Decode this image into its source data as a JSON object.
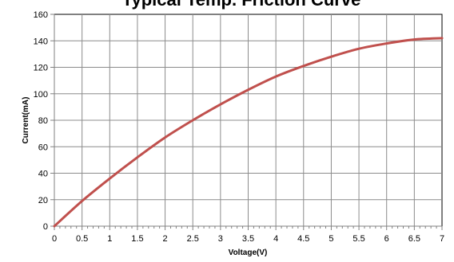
{
  "chart_data": {
    "type": "line",
    "title": "Typical Temp. Friction Curve",
    "xlabel": "Voltage(V)",
    "ylabel": "Current(mA)",
    "xlim": [
      0,
      7
    ],
    "ylim": [
      0,
      160
    ],
    "x_ticks": [
      "0",
      "0.5",
      "1",
      "1.5",
      "2",
      "2.5",
      "3",
      "3.5",
      "4",
      "4.5",
      "5",
      "5.5",
      "6",
      "6.5",
      "7"
    ],
    "y_ticks": [
      "0",
      "20",
      "40",
      "60",
      "80",
      "100",
      "120",
      "140",
      "160"
    ],
    "grid": true,
    "legend": "none",
    "colors": {
      "series": "#c0504d",
      "grid": "#8c8c8c",
      "axis": "#808080",
      "plot_border": "#000000"
    },
    "series": [
      {
        "x": [
          0,
          0.5,
          1,
          1.5,
          2,
          2.5,
          3,
          3.5,
          4,
          4.5,
          5,
          5.5,
          6,
          6.5,
          7
        ],
        "y": [
          0,
          19,
          36,
          52,
          67,
          80,
          92,
          103,
          113,
          121,
          128,
          134,
          138,
          141,
          142
        ]
      }
    ]
  }
}
